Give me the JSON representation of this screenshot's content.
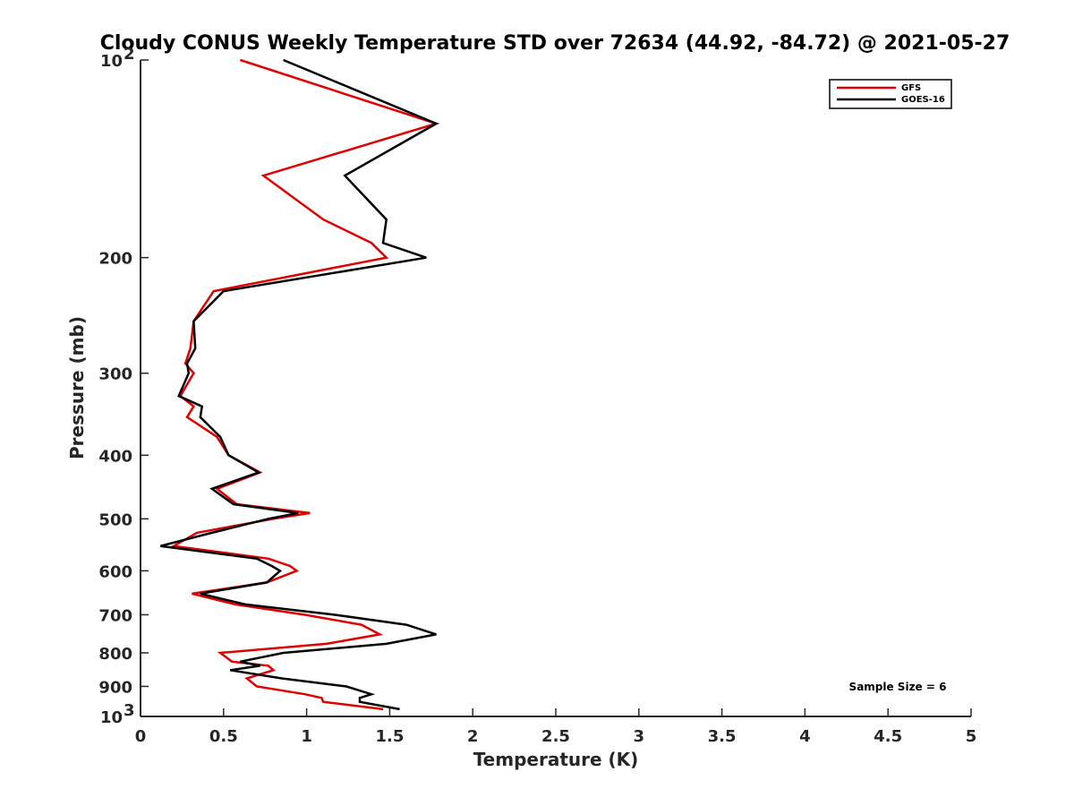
{
  "chart_data": {
    "type": "line",
    "title": "Cloudy CONUS Weekly Temperature STD over 72634 (44.92, -84.72) @ 2021-05-27",
    "xlabel": "Temperature (K)",
    "ylabel": "Pressure (mb)",
    "xlim": [
      0,
      5
    ],
    "ylim": [
      100,
      1000
    ],
    "y_scale": "log",
    "y_reversed": true,
    "grid": false,
    "legend_position": "top-right",
    "x_ticks": [
      "0",
      "0.5",
      "1",
      "1.5",
      "2",
      "2.5",
      "3",
      "3.5",
      "4",
      "4.5",
      "5"
    ],
    "y_ticks": [
      {
        "value": 100,
        "base": "10",
        "exp": "2"
      },
      {
        "value": 200,
        "label": "200"
      },
      {
        "value": 300,
        "label": "300"
      },
      {
        "value": 400,
        "label": "400"
      },
      {
        "value": 500,
        "label": "500"
      },
      {
        "value": 600,
        "label": "600"
      },
      {
        "value": 700,
        "label": "700"
      },
      {
        "value": 800,
        "label": "800"
      },
      {
        "value": 900,
        "label": "900"
      },
      {
        "value": 1000,
        "base": "10",
        "exp": "3"
      }
    ],
    "series": [
      {
        "name": "GFS",
        "color": "#e00000",
        "points": [
          [
            0.6,
            100
          ],
          [
            1.78,
            125
          ],
          [
            0.74,
            150
          ],
          [
            1.1,
            175
          ],
          [
            1.39,
            190
          ],
          [
            1.48,
            200
          ],
          [
            0.44,
            225
          ],
          [
            0.32,
            250
          ],
          [
            0.3,
            275
          ],
          [
            0.27,
            290
          ],
          [
            0.32,
            300
          ],
          [
            0.24,
            325
          ],
          [
            0.32,
            337
          ],
          [
            0.28,
            350
          ],
          [
            0.46,
            375
          ],
          [
            0.53,
            400
          ],
          [
            0.72,
            425
          ],
          [
            0.46,
            450
          ],
          [
            0.58,
            475
          ],
          [
            1.02,
            490
          ],
          [
            0.8,
            500
          ],
          [
            0.34,
            525
          ],
          [
            0.2,
            550
          ],
          [
            0.77,
            575
          ],
          [
            0.9,
            590
          ],
          [
            0.94,
            600
          ],
          [
            0.76,
            625
          ],
          [
            0.31,
            650
          ],
          [
            0.57,
            675
          ],
          [
            0.99,
            700
          ],
          [
            1.33,
            725
          ],
          [
            1.44,
            750
          ],
          [
            1.12,
            775
          ],
          [
            0.48,
            800
          ],
          [
            0.55,
            825
          ],
          [
            0.77,
            837
          ],
          [
            0.8,
            850
          ],
          [
            0.64,
            875
          ],
          [
            0.7,
            900
          ],
          [
            0.99,
            925
          ],
          [
            1.09,
            937
          ],
          [
            1.1,
            950
          ],
          [
            1.46,
            975
          ]
        ]
      },
      {
        "name": "GOES-16",
        "color": "#000000",
        "points": [
          [
            0.86,
            100
          ],
          [
            1.78,
            125
          ],
          [
            1.23,
            150
          ],
          [
            1.48,
            175
          ],
          [
            1.46,
            190
          ],
          [
            1.72,
            200
          ],
          [
            0.5,
            225
          ],
          [
            0.32,
            250
          ],
          [
            0.33,
            275
          ],
          [
            0.28,
            290
          ],
          [
            0.29,
            300
          ],
          [
            0.23,
            325
          ],
          [
            0.37,
            337
          ],
          [
            0.36,
            350
          ],
          [
            0.48,
            375
          ],
          [
            0.53,
            400
          ],
          [
            0.71,
            425
          ],
          [
            0.43,
            450
          ],
          [
            0.56,
            475
          ],
          [
            0.95,
            490
          ],
          [
            0.77,
            500
          ],
          [
            0.43,
            525
          ],
          [
            0.12,
            550
          ],
          [
            0.7,
            575
          ],
          [
            0.79,
            590
          ],
          [
            0.84,
            600
          ],
          [
            0.76,
            625
          ],
          [
            0.36,
            650
          ],
          [
            0.63,
            675
          ],
          [
            1.17,
            700
          ],
          [
            1.6,
            725
          ],
          [
            1.78,
            750
          ],
          [
            1.48,
            775
          ],
          [
            0.86,
            800
          ],
          [
            0.6,
            825
          ],
          [
            0.72,
            837
          ],
          [
            0.54,
            850
          ],
          [
            0.85,
            875
          ],
          [
            1.24,
            900
          ],
          [
            1.39,
            925
          ],
          [
            1.32,
            937
          ],
          [
            1.32,
            950
          ],
          [
            1.56,
            975
          ]
        ]
      }
    ],
    "annotation": "Sample Size = 6"
  }
}
